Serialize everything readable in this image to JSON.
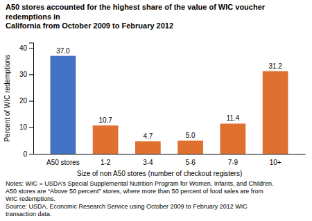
{
  "chart_data": {
    "type": "bar",
    "title": [
      "A50 stores accounted for the highest share of the value of WIC voucher redemptions in",
      "California from October 2009 to February 2012"
    ],
    "categories": [
      "A50 stores",
      "1-2",
      "3-4",
      "5-6",
      "7-9",
      "10+"
    ],
    "values": [
      37.0,
      10.7,
      4.7,
      5.0,
      11.4,
      31.2
    ],
    "value_labels": [
      "37.0",
      "10.7",
      "4.7",
      "5.0",
      "11.4",
      "31.2"
    ],
    "data_labels": true,
    "colors": [
      "#4472c4",
      "#e07030",
      "#e07030",
      "#e07030",
      "#e07030",
      "#e07030"
    ],
    "xlabel": "Size of non A50 stores (number of checkout registers)",
    "ylabel": "Percent of WIC redemptions",
    "ylim": [
      0,
      42
    ],
    "yticks": [
      0,
      10,
      20,
      30,
      40
    ],
    "grid": false,
    "notes": [
      "Notes: WIC = USDA’s Special Supplemental Nutrition Program for Women, Infants, and Children.",
      "A50 stores are “Above 50 percent” stores, where more than 50 percent of food sales are from",
      "WIC redemptions.",
      "Source: USDA, Economic Research Service using October 2009 to February 2012 WIC",
      "transaction data."
    ]
  }
}
